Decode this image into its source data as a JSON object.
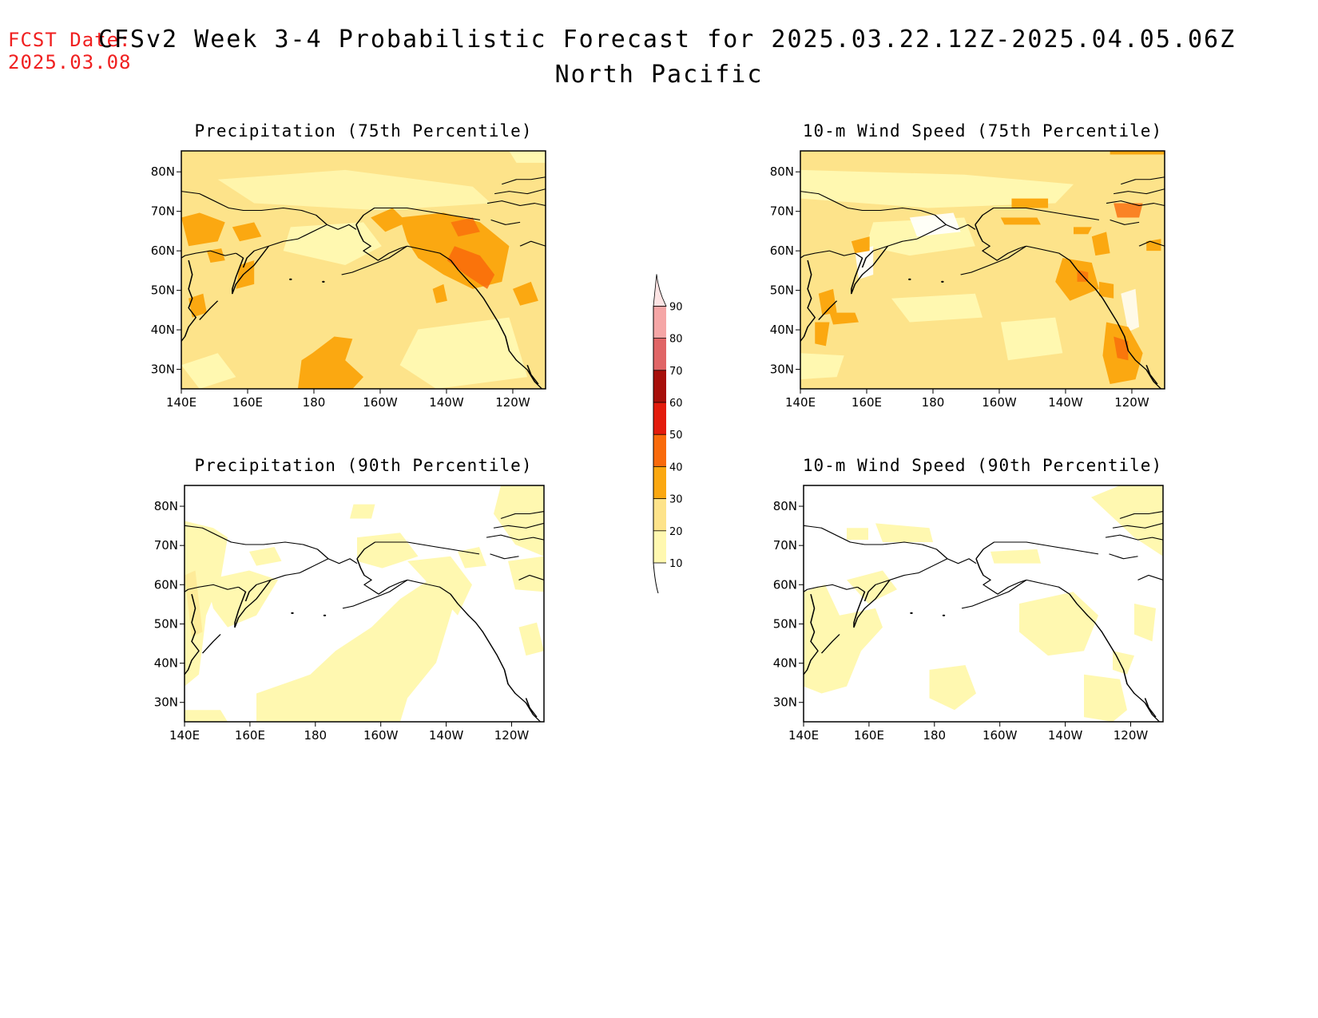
{
  "header": {
    "fcst_label": "FCST Date:",
    "fcst_date": "2025.03.08",
    "title": "CFSv2 Week 3-4 Probabilistic Forecast for 2025.03.22.12Z-2025.04.05.06Z",
    "region": "North Pacific"
  },
  "panels": [
    {
      "title": "Precipitation (75th Percentile)"
    },
    {
      "title": "10-m Wind Speed (75th Percentile)"
    },
    {
      "title": "Precipitation (90th Percentile)"
    },
    {
      "title": "10-m Wind Speed (90th Percentile)"
    }
  ],
  "axes": {
    "lat_ticks": [
      "80N",
      "70N",
      "60N",
      "50N",
      "40N",
      "30N"
    ],
    "lon_ticks": [
      "140E",
      "160E",
      "180",
      "160W",
      "140W",
      "120W"
    ]
  },
  "colorbar": {
    "levels": [
      10,
      20,
      30,
      40,
      50,
      60,
      70,
      80,
      90
    ],
    "labels": [
      "10",
      "20",
      "30",
      "40",
      "50",
      "60",
      "70",
      "80",
      "90"
    ],
    "colors": [
      "#fff8b0",
      "#fde38a",
      "#fba811",
      "#f96a0b",
      "#e31b0c",
      "#a70f0a",
      "#e06566",
      "#f5a6a6",
      "#fde4e4"
    ]
  },
  "colors": {
    "fcst_text": "#f02020",
    "coastline": "#000000"
  }
}
